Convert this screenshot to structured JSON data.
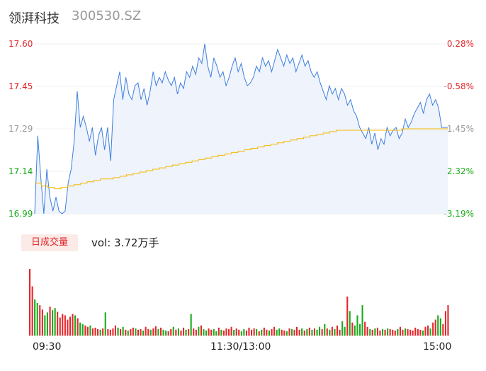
{
  "header": {
    "name": "领湃科技",
    "code": "300530.SZ"
  },
  "chart_data": [
    {
      "type": "line",
      "y_ticks": [
        "17.60",
        "17.45",
        "17.29",
        "17.14",
        "16.99"
      ],
      "pct_ticks": [
        "0.28%",
        "-0.58%",
        "-1.45%",
        "-2.32%",
        "-3.19%"
      ],
      "ylim": [
        16.99,
        17.6
      ],
      "series": [
        {
          "values": [
            16.99,
            17.27,
            17.12,
            16.99,
            17.15,
            17.05,
            17.0,
            17.05,
            17.0,
            16.99,
            17.0,
            17.1,
            17.15,
            17.25,
            17.43,
            17.3,
            17.34,
            17.3,
            17.25,
            17.3,
            17.2,
            17.27,
            17.3,
            17.22,
            17.3,
            17.18,
            17.4,
            17.45,
            17.5,
            17.4,
            17.48,
            17.42,
            17.4,
            17.45,
            17.46,
            17.4,
            17.44,
            17.38,
            17.43,
            17.5,
            17.45,
            17.48,
            17.46,
            17.5,
            17.47,
            17.45,
            17.48,
            17.42,
            17.46,
            17.44,
            17.5,
            17.48,
            17.52,
            17.49,
            17.55,
            17.53,
            17.6,
            17.52,
            17.48,
            17.55,
            17.52,
            17.48,
            17.5,
            17.45,
            17.48,
            17.52,
            17.55,
            17.5,
            17.53,
            17.48,
            17.45,
            17.46,
            17.48,
            17.52,
            17.5,
            17.55,
            17.52,
            17.54,
            17.5,
            17.54,
            17.58,
            17.55,
            17.52,
            17.56,
            17.53,
            17.55,
            17.5,
            17.53,
            17.56,
            17.52,
            17.54,
            17.5,
            17.48,
            17.5,
            17.46,
            17.43,
            17.4,
            17.45,
            17.42,
            17.44,
            17.4,
            17.44,
            17.42,
            17.38,
            17.4,
            17.36,
            17.34,
            17.3,
            17.28,
            17.26,
            17.3,
            17.24,
            17.28,
            17.22,
            17.26,
            17.24,
            17.3,
            17.27,
            17.29,
            17.3,
            17.26,
            17.28,
            17.33,
            17.3,
            17.32,
            17.35,
            17.37,
            17.39,
            17.35,
            17.4,
            17.42,
            17.38,
            17.4,
            17.37,
            17.3,
            17.3,
            17.3
          ]
        },
        {
          "values": [
            17.1,
            17.09,
            17.085,
            17.08,
            17.085,
            17.09,
            17.095,
            17.1,
            17.105,
            17.11,
            17.115,
            17.115,
            17.12,
            17.125,
            17.13,
            17.135,
            17.14,
            17.145,
            17.15,
            17.155,
            17.16,
            17.165,
            17.17,
            17.175,
            17.18,
            17.185,
            17.19,
            17.195,
            17.2,
            17.205,
            17.21,
            17.215,
            17.22,
            17.225,
            17.23,
            17.235,
            17.24,
            17.245,
            17.25,
            17.255,
            17.26,
            17.265,
            17.27,
            17.275,
            17.28,
            17.285,
            17.29,
            17.29,
            17.29,
            17.29,
            17.29,
            17.29,
            17.29,
            17.29,
            17.29,
            17.29,
            17.295,
            17.295,
            17.295,
            17.295,
            17.295,
            17.295,
            17.295,
            17.295
          ]
        }
      ]
    },
    {
      "type": "bar",
      "summary_button": "日成交量",
      "summary": "vol: 3.72万手",
      "x_ticks": [
        "09:30",
        "11:30/13:00",
        "15:00"
      ],
      "series": [
        {
          "values": [
            92,
            68,
            50,
            45,
            42,
            36,
            28,
            32,
            40,
            35,
            38,
            33,
            25,
            30,
            28,
            22,
            26,
            30,
            28,
            24,
            18,
            16,
            14,
            12,
            14,
            10,
            11,
            9,
            8,
            10,
            32,
            9,
            8,
            10,
            14,
            11,
            9,
            12,
            8,
            7,
            9,
            11,
            10,
            8,
            9,
            7,
            12,
            9,
            8,
            10,
            13,
            9,
            11,
            8,
            7,
            6,
            9,
            12,
            8,
            10,
            7,
            11,
            8,
            9,
            30,
            10,
            8,
            12,
            14,
            9,
            7,
            10,
            8,
            9,
            6,
            11,
            8,
            7,
            10,
            9,
            12,
            8,
            10,
            8,
            6,
            9,
            7,
            11,
            8,
            10,
            9,
            6,
            8,
            11,
            8,
            7,
            9,
            12,
            8,
            10,
            8,
            7,
            6,
            10,
            9,
            8,
            12,
            8,
            10,
            7,
            9,
            11,
            8,
            10,
            8,
            12,
            9,
            16,
            10,
            8,
            12,
            9,
            14,
            8,
            20,
            12,
            54,
            34,
            18,
            14,
            28,
            16,
            42,
            19,
            12,
            9,
            8,
            10,
            11,
            7,
            9,
            8,
            10,
            9,
            8,
            7,
            9,
            12,
            8,
            10,
            9,
            8,
            7,
            11,
            9,
            8,
            7,
            12,
            14,
            10,
            18,
            22,
            28,
            24,
            16,
            34,
            42
          ]
        }
      ],
      "colors": {
        "up": "#e5262b",
        "down": "#1aab1a"
      }
    }
  ],
  "x_labels": [
    "09:30",
    "11:30/13:00",
    "15:00"
  ],
  "colors": {
    "price_line": "#3e7fde",
    "avg_line": "#f5b800",
    "up": "#e5262b",
    "down": "#1aab1a",
    "neutral": "#999999"
  }
}
